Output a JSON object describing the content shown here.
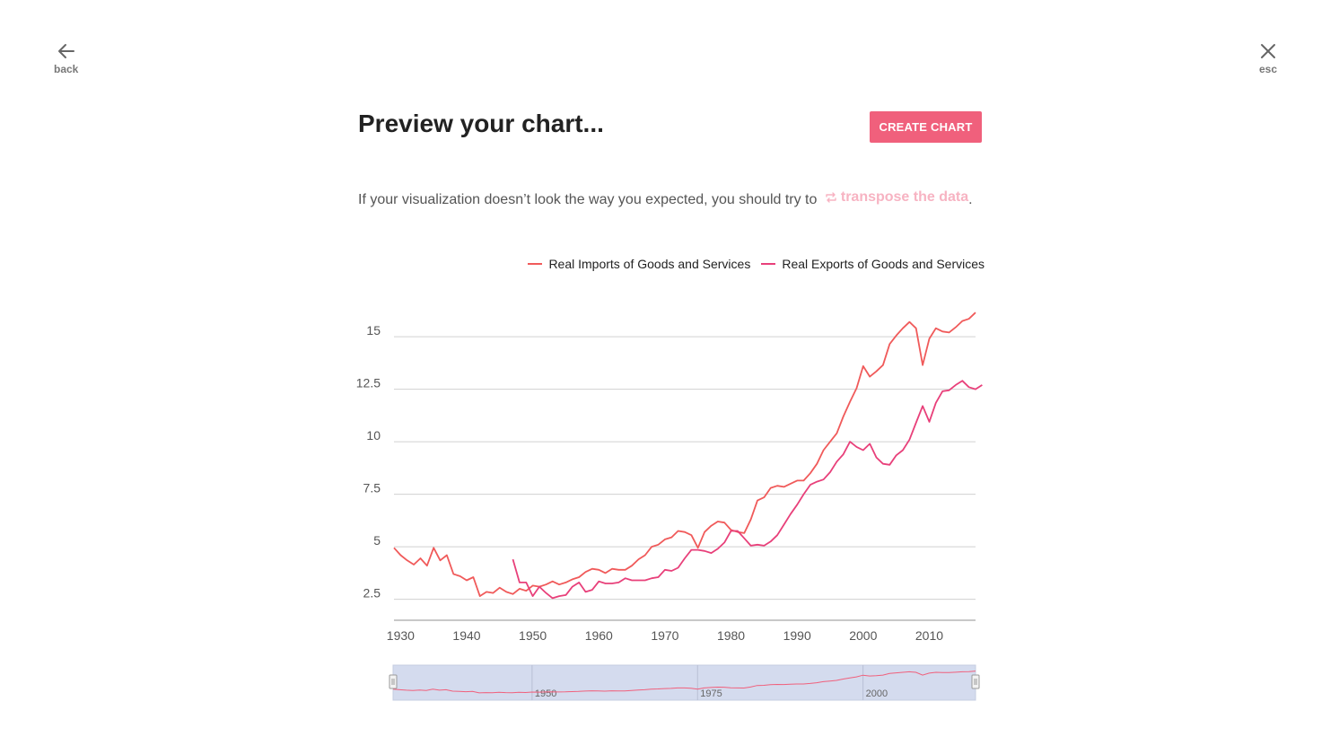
{
  "nav": {
    "back_label": "back",
    "esc_label": "esc"
  },
  "header": {
    "title": "Preview your chart...",
    "create_button": "CREATE CHART"
  },
  "hint": {
    "text": "If your visualization doesn’t look the way you expected, you should try to",
    "link": "transpose the data",
    "suffix": "."
  },
  "colors": {
    "accent": "#f0607c",
    "imports": "#f05a5a",
    "exports": "#e8407a",
    "navigator_fill": "#d4dbee"
  },
  "chart_data": {
    "type": "line",
    "yticks": [
      "2.5",
      "5",
      "7.5",
      "10",
      "12.5",
      "15"
    ],
    "xticks": [
      "1930",
      "1940",
      "1950",
      "1960",
      "1970",
      "1980",
      "1990",
      "2000",
      "2010"
    ],
    "ylim": [
      1.5,
      16.5
    ],
    "xlim": [
      1929,
      2017
    ],
    "grid": true,
    "legend_position": "top-right",
    "navigator": {
      "labels": [
        "1950",
        "1975",
        "2000"
      ]
    },
    "series": [
      {
        "name": "Real Imports of Goods and Services",
        "color": "#f05a5a",
        "start_year": 1929,
        "values": [
          4.95,
          4.6,
          4.35,
          4.15,
          4.45,
          4.1,
          4.95,
          4.35,
          4.6,
          3.7,
          3.6,
          3.4,
          3.55,
          2.65,
          2.85,
          2.8,
          3.05,
          2.85,
          2.75,
          3.0,
          2.9,
          3.15,
          3.1,
          3.2,
          3.35,
          3.2,
          3.3,
          3.45,
          3.55,
          3.8,
          3.95,
          3.9,
          3.75,
          3.95,
          3.9,
          3.9,
          4.1,
          4.4,
          4.6,
          5.0,
          5.1,
          5.35,
          5.45,
          5.75,
          5.7,
          5.55,
          4.95,
          5.7,
          6.0,
          6.2,
          6.15,
          5.8,
          5.7,
          5.65,
          6.3,
          7.2,
          7.35,
          7.8,
          7.9,
          7.85,
          8.0,
          8.15,
          8.15,
          8.5,
          8.95,
          9.6,
          10.0,
          10.4,
          11.2,
          11.9,
          12.55,
          13.6,
          13.1,
          13.35,
          13.65,
          14.65,
          15.05,
          15.4,
          15.7,
          15.4,
          13.65,
          14.9,
          15.4,
          15.25,
          15.2,
          15.45,
          15.75,
          15.85,
          16.15
        ]
      },
      {
        "name": "Real Exports of Goods and Services",
        "color": "#e8407a",
        "start_year": 1947,
        "values": [
          4.4,
          3.3,
          3.3,
          2.65,
          3.1,
          2.8,
          2.55,
          2.65,
          2.7,
          3.1,
          3.3,
          2.85,
          2.95,
          3.35,
          3.25,
          3.25,
          3.3,
          3.5,
          3.4,
          3.4,
          3.4,
          3.5,
          3.55,
          3.9,
          3.85,
          4.0,
          4.45,
          4.85,
          4.85,
          4.8,
          4.7,
          4.9,
          5.2,
          5.75,
          5.75,
          5.4,
          5.05,
          5.1,
          5.05,
          5.25,
          5.55,
          6.05,
          6.55,
          7.0,
          7.5,
          7.95,
          8.1,
          8.2,
          8.55,
          9.05,
          9.4,
          10.0,
          9.75,
          9.6,
          9.9,
          9.25,
          8.95,
          8.9,
          9.35,
          9.6,
          10.1,
          10.9,
          11.7,
          10.95,
          11.85,
          12.4,
          12.45,
          12.7,
          12.9,
          12.6,
          12.5,
          12.7
        ]
      }
    ]
  }
}
